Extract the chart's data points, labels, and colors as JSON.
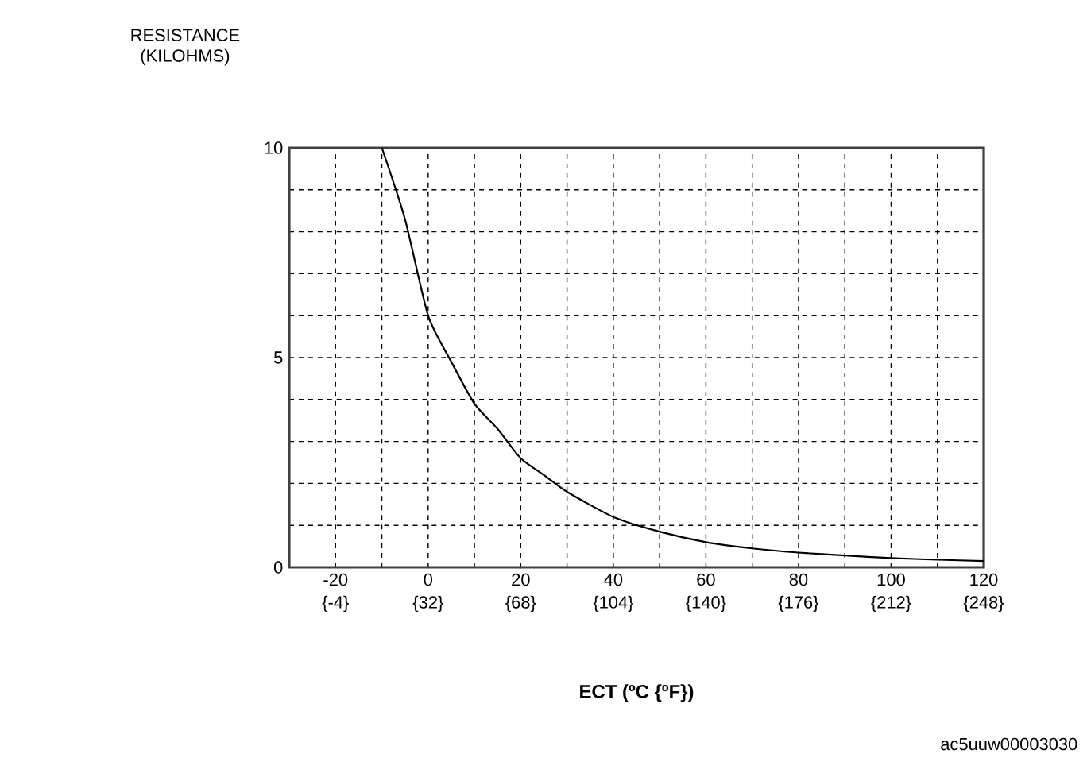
{
  "chart_data": {
    "type": "line",
    "xlabel": "ECT (ºC {ºF})",
    "ylabel": "RESISTANCE (KILOHMS)",
    "annotations": [
      "ac5uuw00003030"
    ],
    "x": [
      -10,
      -5,
      0,
      5,
      10,
      15,
      20,
      25,
      30,
      40,
      50,
      60,
      70,
      80,
      90,
      100,
      110,
      120
    ],
    "series": [
      {
        "color": "#000000",
        "values": [
          10,
          8.3,
          6.0,
          4.9,
          3.9,
          3.3,
          2.6,
          2.2,
          1.8,
          1.2,
          0.85,
          0.6,
          0.45,
          0.35,
          0.28,
          0.22,
          0.18,
          0.15
        ]
      }
    ],
    "xlim": [
      -30,
      120
    ],
    "xticks": [
      -20,
      {
        "value": -10,
        "label": null
      },
      0,
      {
        "value": 10,
        "label": null
      },
      20,
      {
        "value": 30,
        "label": null
      },
      40,
      {
        "value": 50,
        "label": null
      },
      60,
      {
        "value": 70,
        "label": null
      },
      80,
      {
        "value": 90,
        "label": null
      },
      100,
      {
        "value": 110,
        "label": null
      },
      120
    ],
    "x2lim": [
      -22,
      248
    ],
    "x2ticks": [
      {
        "value": -4,
        "label": "{-4}"
      },
      {
        "value": 32,
        "label": "{32}"
      },
      {
        "value": 68,
        "label": "{68}"
      },
      {
        "value": 104,
        "label": "{104}"
      },
      {
        "value": 140,
        "label": "{140}"
      },
      {
        "value": 176,
        "label": "{176}"
      },
      {
        "value": 212,
        "label": "{212}"
      },
      {
        "value": 248,
        "label": "{248}"
      }
    ],
    "ylim": [
      0,
      10
    ],
    "yticks": [
      0,
      {
        "value": 1,
        "label": null
      },
      {
        "value": 2,
        "label": null
      },
      {
        "value": 3,
        "label": null
      },
      {
        "value": 4,
        "label": null
      },
      5,
      {
        "value": 6,
        "label": null
      },
      {
        "value": 7,
        "label": null
      },
      {
        "value": 8,
        "label": null
      },
      {
        "value": 9,
        "label": null
      },
      10
    ],
    "grid": true,
    "marker": "none",
    "line_style": "solid"
  }
}
